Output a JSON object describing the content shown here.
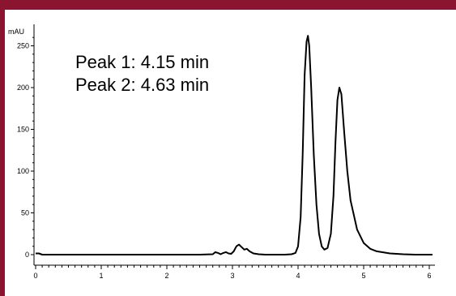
{
  "colors": {
    "frame": "#8b1530",
    "trace": "#000000",
    "axis": "#000000"
  },
  "chart_data": {
    "type": "line",
    "ylabel": "mAU",
    "xlabel": "",
    "xlim": [
      0,
      6.1
    ],
    "ylim": [
      -5,
      272
    ],
    "x_ticks": [
      0,
      1,
      2,
      3,
      4,
      5,
      6
    ],
    "y_ticks": [
      0,
      50,
      100,
      150,
      200,
      250
    ],
    "grid": false,
    "annotations": [
      "Peak 1: 4.15 min",
      "Peak 2: 4.63 min"
    ],
    "series": [
      {
        "color": "#000000",
        "x": [
          0.0,
          0.05,
          0.1,
          0.5,
          1.0,
          1.5,
          2.0,
          2.5,
          2.7,
          2.74,
          2.78,
          2.82,
          2.86,
          2.9,
          2.94,
          2.98,
          3.02,
          3.06,
          3.1,
          3.14,
          3.18,
          3.22,
          3.26,
          3.32,
          3.4,
          3.5,
          3.6,
          3.7,
          3.8,
          3.9,
          3.96,
          4.0,
          4.04,
          4.07,
          4.1,
          4.13,
          4.15,
          4.17,
          4.2,
          4.24,
          4.28,
          4.32,
          4.36,
          4.4,
          4.45,
          4.5,
          4.54,
          4.57,
          4.6,
          4.63,
          4.66,
          4.7,
          4.75,
          4.8,
          4.9,
          5.0,
          5.1,
          5.2,
          5.4,
          5.6,
          5.8,
          6.0,
          6.05
        ],
        "y": [
          1.5,
          1.5,
          0,
          0,
          0,
          0,
          0,
          0,
          0.5,
          3,
          2,
          0.5,
          2,
          3,
          1.5,
          1,
          4,
          10,
          12,
          9,
          6,
          7,
          4,
          1.5,
          0.5,
          0,
          0,
          0,
          0,
          0.5,
          2,
          10,
          45,
          120,
          215,
          255,
          262,
          250,
          200,
          120,
          60,
          25,
          10,
          6,
          8,
          25,
          70,
          135,
          185,
          200,
          192,
          150,
          100,
          65,
          30,
          14,
          7,
          4,
          1.5,
          0.5,
          0,
          0,
          0
        ]
      }
    ]
  }
}
